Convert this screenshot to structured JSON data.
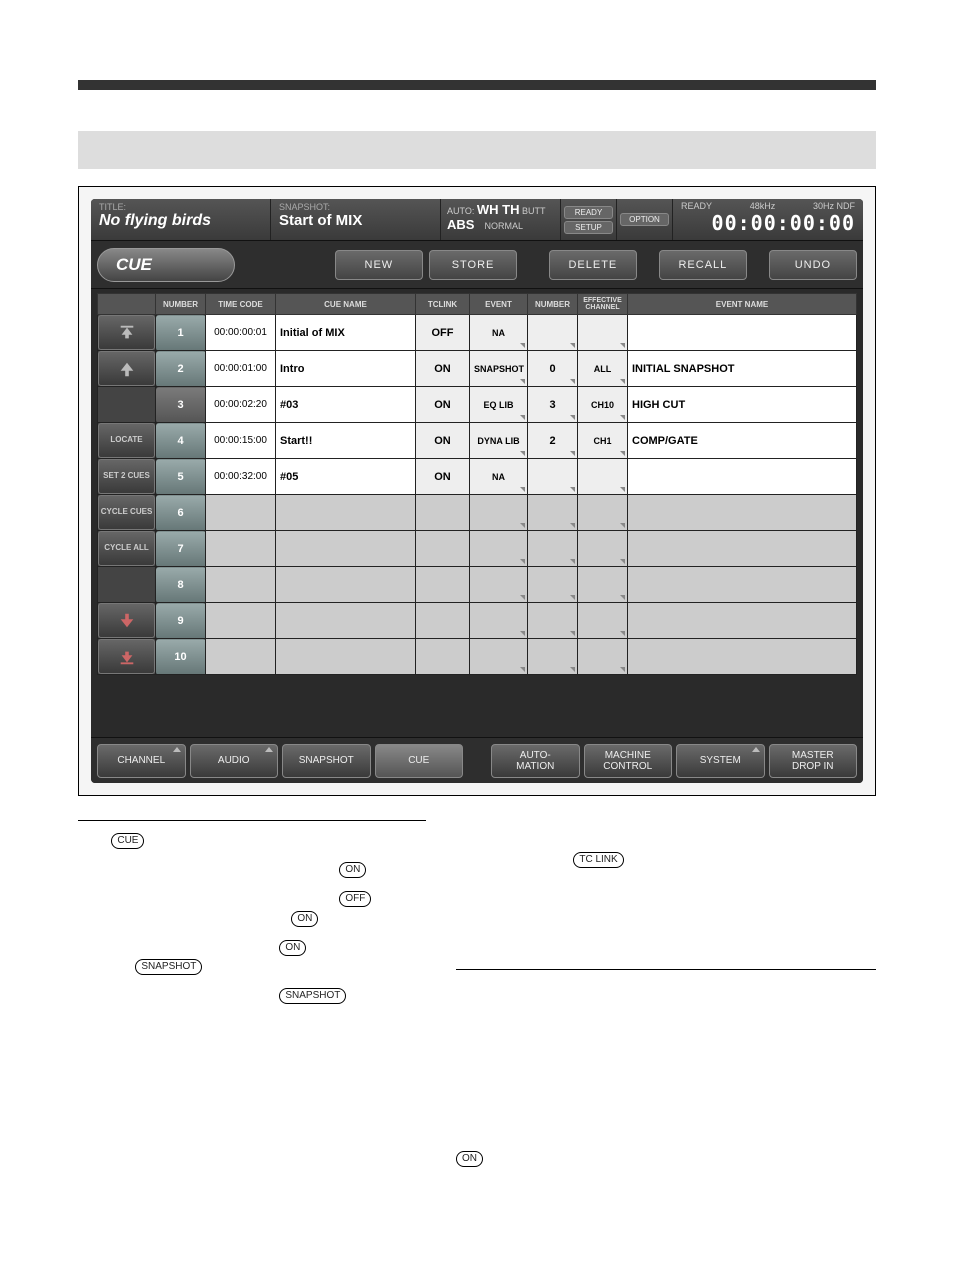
{
  "header": {
    "title_label": "TITLE:",
    "title_value": "No flying birds",
    "snapshot_label": "SNAPSHOT:",
    "snapshot_value": "Start of MIX",
    "auto_line1a": "AUTO:",
    "auto_line1b": "WH TH",
    "auto_line1c": "BUTT",
    "auto_line2a": "ABS",
    "auto_line2b": "NORMAL",
    "pill1a": "READY",
    "pill1b": "SETUP",
    "pill2": "OPTION",
    "tc_ready": "READY",
    "tc_rate": "48kHz",
    "tc_fmt": "30Hz NDF",
    "tc_value": "00:00:00:00"
  },
  "cuerow": {
    "title": "CUE",
    "btn_new": "NEW",
    "btn_store": "STORE",
    "btn_delete": "DELETE",
    "btn_recall": "RECALL",
    "btn_undo": "UNDO"
  },
  "columns": {
    "nav": "",
    "number": "NUMBER",
    "timecode": "TIME CODE",
    "cuename": "CUE NAME",
    "tclink": "TCLINK",
    "event": "EVENT",
    "number2": "NUMBER",
    "effch": "EFFECTIVE CHANNEL",
    "eventname": "EVENT NAME"
  },
  "navlabels": {
    "r1": "⤒",
    "r2": "↑",
    "r4": "LOCATE",
    "r5": "SET 2 CUES",
    "r6": "CYCLE CUES",
    "r7": "CYCLE ALL",
    "r9": "↓",
    "r10": "⤓"
  },
  "rows": [
    {
      "num": "1",
      "tc": "00:00:00:01",
      "name": "Initial of MIX",
      "tclink": "OFF",
      "event": "NA",
      "num2": "",
      "eff": "",
      "ename": "",
      "hl": true
    },
    {
      "num": "2",
      "tc": "00:00:01:00",
      "name": "Intro",
      "tclink": "ON",
      "event": "SNAPSHOT",
      "num2": "0",
      "eff": "ALL",
      "ename": "INITIAL SNAPSHOT",
      "hl": true
    },
    {
      "num": "3",
      "tc": "00:00:02:20",
      "name": "#03",
      "tclink": "ON",
      "event": "EQ LIB",
      "num2": "3",
      "eff": "CH10",
      "ename": "HIGH CUT",
      "hl": false
    },
    {
      "num": "4",
      "tc": "00:00:15:00",
      "name": "Start!!",
      "tclink": "ON",
      "event": "DYNA LIB",
      "num2": "2",
      "eff": "CH1",
      "ename": "COMP/GATE",
      "hl": true
    },
    {
      "num": "5",
      "tc": "00:00:32:00",
      "name": "#05",
      "tclink": "ON",
      "event": "NA",
      "num2": "",
      "eff": "",
      "ename": "",
      "hl": true
    },
    {
      "num": "6",
      "tc": "",
      "name": "",
      "tclink": "",
      "event": "",
      "num2": "",
      "eff": "",
      "ename": "",
      "hl": true
    },
    {
      "num": "7",
      "tc": "",
      "name": "",
      "tclink": "",
      "event": "",
      "num2": "",
      "eff": "",
      "ename": "",
      "hl": true
    },
    {
      "num": "8",
      "tc": "",
      "name": "",
      "tclink": "",
      "event": "",
      "num2": "",
      "eff": "",
      "ename": "",
      "hl": true
    },
    {
      "num": "9",
      "tc": "",
      "name": "",
      "tclink": "",
      "event": "",
      "num2": "",
      "eff": "",
      "ename": "",
      "hl": true
    },
    {
      "num": "10",
      "tc": "",
      "name": "",
      "tclink": "",
      "event": "",
      "num2": "",
      "eff": "",
      "ename": "",
      "hl": true
    }
  ],
  "bottomtabs": {
    "channel": "CHANNEL",
    "audio": "AUDIO",
    "snapshot": "SNAPSHOT",
    "cue": "CUE",
    "automation": "AUTO-\nMATION",
    "machine": "MACHINE\nCONTROL",
    "system": "SYSTEM",
    "master": "MASTER\nDROP IN"
  },
  "keycaps": {
    "cue": "CUE",
    "on": "ON",
    "off": "OFF",
    "snapshot": "SNAPSHOT",
    "tclink": "TC LINK"
  },
  "colors": {
    "screen_bg": "#2a2a2a",
    "panel_bg": "#3a3a3a",
    "btn_grad_top": "#6a6a6a",
    "btn_grad_bot": "#444444",
    "cell_light": "#e8e8e8",
    "cell_white": "#ffffff",
    "text_light": "#dddddd"
  }
}
